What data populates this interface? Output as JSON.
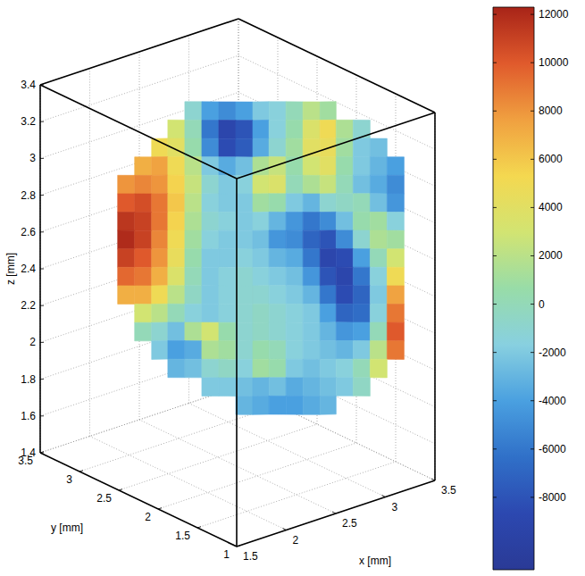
{
  "chart_data": {
    "type": "surface",
    "xlabel": "x [mm]",
    "ylabel": "y [mm]",
    "zlabel": "z [mm]",
    "xlim": [
      1.5,
      3.5
    ],
    "ylim": [
      1,
      3.5
    ],
    "zlim": [
      1.4,
      3.4
    ],
    "xticks": [
      1.5,
      2,
      2.5,
      3,
      3.5
    ],
    "yticks": [
      1,
      1.5,
      2,
      2.5,
      3,
      3.5
    ],
    "zticks": [
      1.4,
      1.6,
      1.8,
      2,
      2.2,
      2.4,
      2.6,
      2.8,
      3,
      3.2,
      3.4
    ],
    "grid": true,
    "surface": {
      "x": [
        1.75,
        1.85,
        1.95,
        2.05,
        2.15,
        2.25,
        2.35,
        2.45,
        2.55,
        2.65,
        2.75,
        2.85,
        2.95,
        3.05,
        3.15,
        3.25,
        3.35,
        3.45
      ],
      "y": [
        2.83,
        2.74,
        2.65,
        2.57,
        2.48,
        2.39,
        2.3,
        2.21,
        2.12,
        2.04,
        1.95,
        1.86,
        1.77,
        1.69,
        1.6,
        1.51,
        1.42,
        1.33
      ],
      "z": [
        3.4,
        3.3,
        3.2,
        3.1,
        3.0,
        2.9,
        2.8,
        2.7,
        2.6,
        2.5,
        2.4,
        2.3,
        2.2,
        2.1,
        2.0,
        1.9,
        1.8,
        1.7
      ],
      "values": [
        [
          null,
          null,
          null,
          null,
          -1000,
          -4000,
          -5000,
          -4000,
          -2000,
          -1500,
          0,
          2000,
          1000,
          null,
          null,
          null,
          null
        ],
        [
          null,
          null,
          null,
          3000,
          0,
          -6000,
          -9000,
          -8000,
          -4000,
          -1500,
          500,
          3500,
          5000,
          1500,
          -1000,
          null,
          null
        ],
        [
          null,
          null,
          5000,
          4000,
          500,
          -5000,
          -8500,
          -7500,
          -3500,
          -1000,
          1000,
          4000,
          4500,
          1000,
          -2000,
          -2500,
          null
        ],
        [
          null,
          7000,
          7500,
          5000,
          2000,
          -2000,
          -3500,
          -2500,
          1500,
          2500,
          500,
          3000,
          4000,
          500,
          -2000,
          -3000,
          -4000
        ],
        [
          8000,
          8500,
          8000,
          5500,
          2500,
          -1000,
          -2000,
          -1500,
          3000,
          3500,
          0,
          1500,
          2500,
          0,
          -2500,
          -3500,
          -5000
        ],
        [
          10000,
          10500,
          9000,
          6000,
          2000,
          -1500,
          -2000,
          -2000,
          1000,
          500,
          -2000,
          -3000,
          -1000,
          -500,
          0,
          -2500,
          -4500
        ],
        [
          11500,
          11000,
          9000,
          5500,
          1500,
          -1000,
          -1500,
          -2000,
          -1500,
          -3000,
          -4500,
          -6000,
          -5000,
          -2500,
          500,
          1000,
          -1500
        ],
        [
          12000,
          11000,
          8500,
          5000,
          1000,
          -1500,
          -2000,
          -2000,
          -2500,
          -4500,
          -5000,
          -7000,
          -8000,
          -5000,
          -1000,
          1500,
          1000
        ],
        [
          11000,
          10000,
          8000,
          4500,
          500,
          -2000,
          -2000,
          -1500,
          -2000,
          -3000,
          -3500,
          -6000,
          -9000,
          -8500,
          -4000,
          0,
          3000
        ],
        [
          9500,
          9000,
          7000,
          3500,
          0,
          -2000,
          -1500,
          -1000,
          -1500,
          -2000,
          -2500,
          -4500,
          -8000,
          -9000,
          -6000,
          -1500,
          5000
        ],
        [
          7000,
          7000,
          5000,
          2000,
          -500,
          -2000,
          -1500,
          -1000,
          -1000,
          -1500,
          -2000,
          -3000,
          -6000,
          -8500,
          -7000,
          -2000,
          7500
        ],
        [
          null,
          3000,
          2000,
          0,
          -1500,
          -2000,
          -1500,
          -1000,
          -500,
          -1000,
          -1500,
          -2000,
          -4000,
          -7000,
          -6500,
          -1500,
          9000
        ],
        [
          null,
          0,
          -1000,
          -2500,
          1500,
          3000,
          500,
          -1000,
          -500,
          -1000,
          -1500,
          -2000,
          -3000,
          -4500,
          -4000,
          0,
          10000
        ],
        [
          null,
          null,
          -2000,
          -4000,
          -3500,
          1500,
          1000,
          -1000,
          500,
          0,
          -1500,
          -2000,
          -2500,
          -3000,
          -2000,
          2000,
          9000
        ],
        [
          null,
          null,
          null,
          -3000,
          -2500,
          -1000,
          -500,
          -1500,
          1000,
          500,
          -2000,
          -2500,
          -2000,
          -1500,
          0,
          3000,
          null
        ],
        [
          null,
          null,
          null,
          null,
          null,
          -2000,
          -2000,
          -2500,
          -3000,
          -2500,
          -3500,
          -3000,
          -2500,
          -2000,
          -500,
          null,
          null
        ],
        [
          null,
          null,
          null,
          null,
          null,
          null,
          null,
          -3000,
          -3500,
          -4000,
          -4000,
          -3500,
          -3000,
          null,
          null,
          null,
          null
        ]
      ]
    },
    "colorbar": {
      "range": [
        -11000,
        12300
      ],
      "ticks": [
        -8000,
        -6000,
        -4000,
        -2000,
        0,
        2000,
        4000,
        6000,
        8000,
        10000,
        12000
      ]
    }
  }
}
